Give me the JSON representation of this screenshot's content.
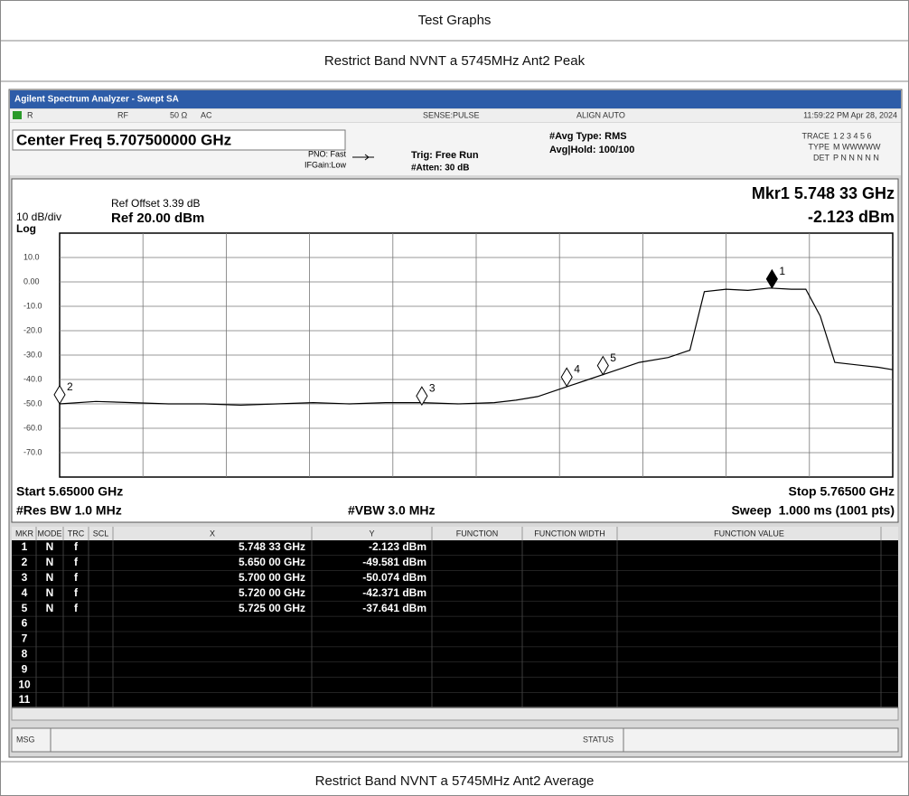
{
  "header": {
    "title": "Test Graphs",
    "subtitle": "Restrict Band NVNT a 5745MHz Ant2 Peak",
    "next_caption": "Restrict Band NVNT a 5745MHz Ant2 Average"
  },
  "analyzer": {
    "window_title": "Agilent Spectrum Analyzer - Swept SA",
    "status_bar": [
      "R",
      "RF",
      "50 Ω",
      "AC",
      "SENSE:PULSE",
      "ALIGN AUTO",
      "11:59:22 PM Apr 28, 2024"
    ],
    "center_freq": "Center Freq 5.707500000 GHz",
    "settings": [
      "PNO: Fast",
      "IFGain:Low",
      "Trig: Free Run",
      "#Atten: 30 dB",
      "#Avg Type: RMS",
      "Avg|Hold: 100/100"
    ],
    "trace_info": [
      [
        "TRACE",
        "1 2 3 4 5 6"
      ],
      [
        "TYPE",
        "M WWWWW"
      ],
      [
        "DET",
        "P N N N N N"
      ]
    ],
    "ref_offset": "Ref Offset 3.39 dB",
    "scale": "10 dB/div",
    "ref_level": "Ref 20.00 dBm",
    "log": "Log",
    "marker_readout": [
      "Mkr1 5.748 33 GHz",
      "-2.123 dBm"
    ],
    "footer": [
      "Start 5.65000 GHz",
      "Stop 5.76500 GHz",
      "#Res BW 1.0 MHz",
      "#VBW 3.0 MHz",
      "Sweep  1.000 ms (1001 pts)"
    ],
    "table": {
      "columns": [
        "MKR",
        "MODE",
        "TRC",
        "SCL",
        "X",
        "Y",
        "FUNCTION",
        "FUNCTION WIDTH",
        "FUNCTION VALUE"
      ],
      "rows": [
        [
          "1",
          "N",
          "f",
          "5.748 33 GHz",
          "-2.123 dBm"
        ],
        [
          "2",
          "N",
          "f",
          "5.650 00 GHz",
          "-49.581 dBm"
        ],
        [
          "3",
          "N",
          "f",
          "5.700 00 GHz",
          "-50.074 dBm"
        ],
        [
          "4",
          "N",
          "f",
          "5.720 00 GHz",
          "-42.371 dBm"
        ],
        [
          "5",
          "N",
          "f",
          "5.725 00 GHz",
          "-37.641 dBm"
        ],
        [
          "6"
        ],
        [
          "7"
        ],
        [
          "8"
        ],
        [
          "9"
        ],
        [
          "10"
        ],
        [
          "11"
        ]
      ]
    },
    "msg": "MSG",
    "status": "STATUS"
  },
  "chart_data": {
    "type": "line",
    "x": [
      5.65,
      5.655,
      5.66,
      5.665,
      5.67,
      5.675,
      5.68,
      5.685,
      5.69,
      5.695,
      5.7,
      5.705,
      5.71,
      5.713,
      5.716,
      5.72,
      5.723,
      5.726,
      5.73,
      5.734,
      5.737,
      5.739,
      5.742,
      5.745,
      5.748,
      5.751,
      5.753,
      5.755,
      5.757,
      5.76,
      5.763,
      5.765
    ],
    "values": [
      -50,
      -49,
      -49.5,
      -50,
      -50,
      -50.5,
      -50,
      -49.5,
      -50,
      -49.5,
      -49.5,
      -50,
      -49.5,
      -48.5,
      -47,
      -43,
      -40,
      -37,
      -33,
      -31,
      -28,
      -4,
      -3,
      -3.5,
      -2.5,
      -3,
      -3,
      -14,
      -33,
      -34,
      -35,
      -36
    ],
    "color": "#000000",
    "xlim": [
      5.65,
      5.765
    ],
    "ylim": [
      -80,
      20
    ],
    "yticks": [
      {
        "value": 10,
        "label": "10.0"
      },
      {
        "value": 0,
        "label": "0.00"
      },
      {
        "value": -10,
        "label": "-10.0"
      },
      {
        "value": -20,
        "label": "-20.0"
      },
      {
        "value": -30,
        "label": "-30.0"
      },
      {
        "value": -40,
        "label": "-40.0"
      },
      {
        "value": -50,
        "label": "-50.0"
      },
      {
        "value": -60,
        "label": "-60.0"
      },
      {
        "value": -70,
        "label": "-70.0"
      }
    ],
    "grid": true,
    "markers": {
      "labels": [
        "1",
        "2",
        "3",
        "4",
        "5"
      ],
      "x": [
        5.74833,
        5.65,
        5.7,
        5.72,
        5.725
      ],
      "y": [
        -2.123,
        -49.581,
        -50.074,
        -42.371,
        -37.641
      ]
    }
  }
}
